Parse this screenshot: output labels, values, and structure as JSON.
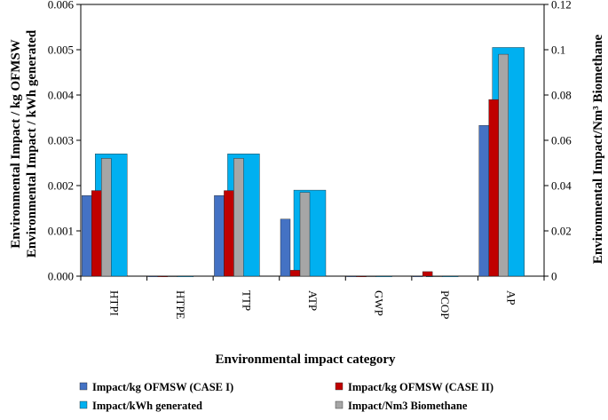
{
  "chart_data": {
    "type": "bar",
    "categories": [
      "HTPI",
      "HTPE",
      "TTP",
      "ATP",
      "GWP",
      "PCOP",
      "AP"
    ],
    "xlabel": "Environmental impact category",
    "ylabel_left_lines": [
      "Environmental Impact / kg OFMSW",
      "Environmental Impact / kWh generated"
    ],
    "ylabel_right": "Environmental Impact/Nm³ Biomethane",
    "left_axis": {
      "ylim": [
        0,
        0.006
      ],
      "ticks": [
        0,
        0.001,
        0.002,
        0.003,
        0.004,
        0.005,
        0.006
      ],
      "tick_labels": [
        "0.000",
        "0.001",
        "0.002",
        "0.003",
        "0.004",
        "0.005",
        "0.006"
      ]
    },
    "right_axis": {
      "ylim": [
        0,
        0.12
      ],
      "ticks": [
        0,
        0.02,
        0.04,
        0.06,
        0.08,
        0.1,
        0.12
      ],
      "tick_labels": [
        "0",
        "0.02",
        "0.04",
        "0.06",
        "0.08",
        "0.1",
        "0.12"
      ]
    },
    "series": [
      {
        "name": "Impact/kWh generated",
        "color": "#00b0f0",
        "axis": "left",
        "values": [
          0.0027,
          0.0,
          0.0027,
          0.0019,
          0.0,
          0.0,
          0.00505
        ]
      },
      {
        "name": "Impact/kg OFMSW (CASE I)",
        "color": "#4472c4",
        "axis": "left",
        "values": [
          0.00178,
          0.0,
          0.00178,
          0.00126,
          0.0,
          0.0,
          0.00333
        ]
      },
      {
        "name": "Impact/kg OFMSW (CASE II)",
        "color": "#c00000",
        "axis": "left",
        "values": [
          0.00189,
          0.0,
          0.00189,
          0.00013,
          0.0,
          0.0001,
          0.0039
        ]
      },
      {
        "name": "Impact/Nm3 Biomethane",
        "color": "#a6a6a6",
        "axis": "right",
        "values": [
          0.052,
          0.0,
          0.052,
          0.037,
          0.0,
          0.0,
          0.098
        ]
      }
    ],
    "legend": [
      {
        "label": "Impact/kg OFMSW (CASE I)",
        "color": "#4472c4"
      },
      {
        "label": "Impact/kg OFMSW (CASE II)",
        "color": "#c00000"
      },
      {
        "label": "Impact/kWh generated",
        "color": "#00b0f0"
      },
      {
        "label": "Impact/Nm3 Biomethane",
        "color": "#a6a6a6"
      }
    ],
    "legend_position": "bottom",
    "grid": false
  }
}
